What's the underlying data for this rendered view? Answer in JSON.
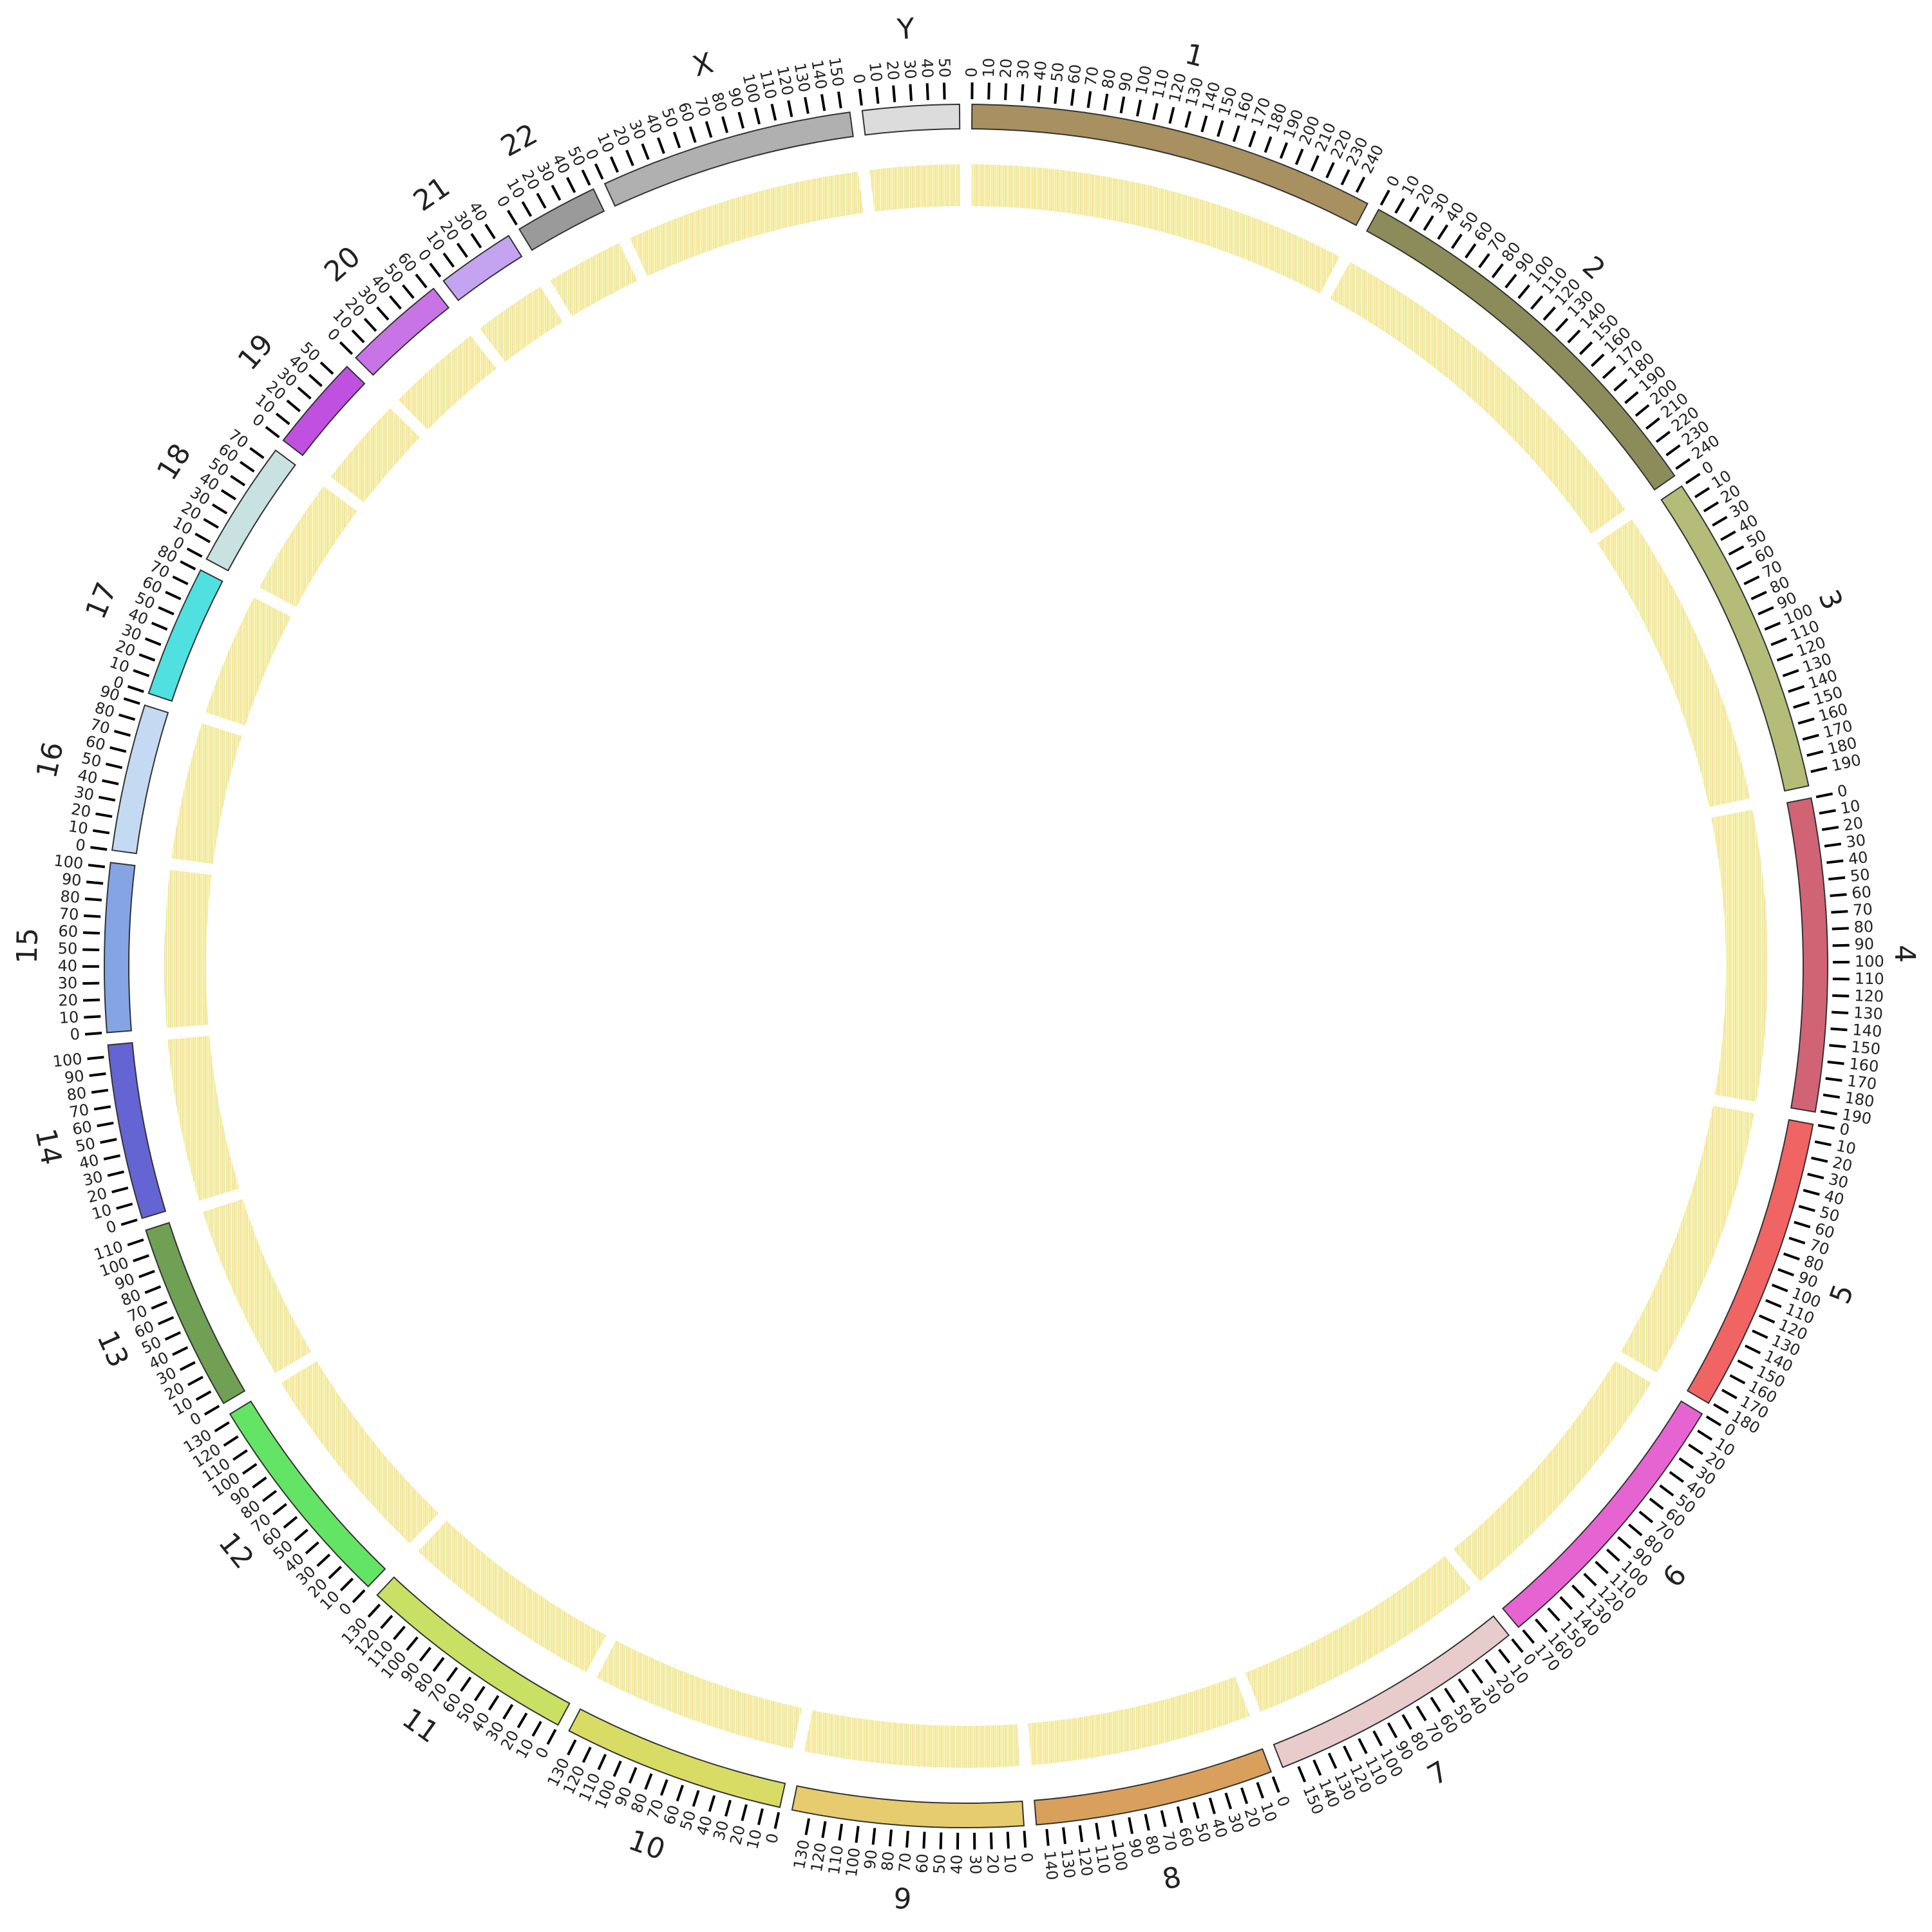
{
  "chart_data": {
    "type": "circos",
    "chromosomes": [
      {
        "name": "1",
        "length": 249,
        "color": "#a89060",
        "ticks": [
          0,
          10,
          20,
          30,
          40,
          50,
          60,
          70,
          80,
          90,
          100,
          110,
          120,
          130,
          140,
          150,
          160,
          170,
          180,
          190,
          200,
          210,
          220,
          230,
          240
        ]
      },
      {
        "name": "2",
        "length": 243,
        "color": "#8c8c5a",
        "ticks": [
          0,
          10,
          20,
          30,
          40,
          50,
          60,
          70,
          80,
          90,
          100,
          110,
          120,
          130,
          140,
          150,
          160,
          170,
          180,
          190,
          200,
          210,
          220,
          230,
          240
        ]
      },
      {
        "name": "3",
        "length": 198,
        "color": "#b4bc78",
        "ticks": [
          0,
          10,
          20,
          30,
          40,
          50,
          60,
          70,
          80,
          90,
          100,
          110,
          120,
          130,
          140,
          150,
          160,
          170,
          180,
          190
        ]
      },
      {
        "name": "4",
        "length": 191,
        "color": "#d06474",
        "ticks": [
          0,
          10,
          20,
          30,
          40,
          50,
          60,
          70,
          80,
          90,
          100,
          110,
          120,
          130,
          140,
          150,
          160,
          170,
          180,
          190
        ]
      },
      {
        "name": "5",
        "length": 181,
        "color": "#f06464",
        "ticks": [
          0,
          10,
          20,
          30,
          40,
          50,
          60,
          70,
          80,
          90,
          100,
          110,
          120,
          130,
          140,
          150,
          160,
          170,
          180
        ]
      },
      {
        "name": "6",
        "length": 171,
        "color": "#e664d2",
        "ticks": [
          0,
          10,
          20,
          30,
          40,
          50,
          60,
          70,
          80,
          90,
          100,
          110,
          120,
          130,
          140,
          150,
          160,
          170
        ]
      },
      {
        "name": "7",
        "length": 159,
        "color": "#e8cccc",
        "ticks": [
          0,
          10,
          20,
          30,
          40,
          50,
          60,
          70,
          80,
          90,
          100,
          110,
          120,
          130,
          140,
          150
        ]
      },
      {
        "name": "8",
        "length": 146,
        "color": "#d8a05c",
        "ticks": [
          0,
          10,
          20,
          30,
          40,
          50,
          60,
          70,
          80,
          90,
          100,
          110,
          120,
          130,
          140
        ]
      },
      {
        "name": "9",
        "length": 141,
        "color": "#e6cc6e",
        "ticks": [
          0,
          10,
          20,
          30,
          40,
          50,
          60,
          70,
          80,
          90,
          100,
          110,
          120,
          130
        ]
      },
      {
        "name": "10",
        "length": 136,
        "color": "#d8dc64",
        "ticks": [
          0,
          10,
          20,
          30,
          40,
          50,
          60,
          70,
          80,
          90,
          100,
          110,
          120,
          130
        ]
      },
      {
        "name": "11",
        "length": 135,
        "color": "#c8e064",
        "ticks": [
          0,
          10,
          20,
          30,
          40,
          50,
          60,
          70,
          80,
          90,
          100,
          110,
          120,
          130
        ]
      },
      {
        "name": "12",
        "length": 134,
        "color": "#64e464",
        "ticks": [
          0,
          10,
          20,
          30,
          40,
          50,
          60,
          70,
          80,
          90,
          100,
          110,
          120,
          130
        ]
      },
      {
        "name": "13",
        "length": 115,
        "color": "#70a054",
        "ticks": [
          0,
          10,
          20,
          30,
          40,
          50,
          60,
          70,
          80,
          90,
          100,
          110
        ]
      },
      {
        "name": "14",
        "length": 107,
        "color": "#6464d2",
        "ticks": [
          0,
          10,
          20,
          30,
          40,
          50,
          60,
          70,
          80,
          90,
          100
        ]
      },
      {
        "name": "15",
        "length": 103,
        "color": "#84a4e4",
        "ticks": [
          0,
          10,
          20,
          30,
          40,
          50,
          60,
          70,
          80,
          90,
          100
        ]
      },
      {
        "name": "16",
        "length": 90,
        "color": "#c4daf2",
        "ticks": [
          0,
          10,
          20,
          30,
          40,
          50,
          60,
          70,
          80,
          90
        ]
      },
      {
        "name": "17",
        "length": 81,
        "color": "#50e0e0",
        "ticks": [
          0,
          10,
          20,
          30,
          40,
          50,
          60,
          70,
          80
        ]
      },
      {
        "name": "18",
        "length": 78,
        "color": "#c8e2e2",
        "ticks": [
          0,
          10,
          20,
          30,
          40,
          50,
          60,
          70
        ]
      },
      {
        "name": "19",
        "length": 59,
        "color": "#c050e0",
        "ticks": [
          0,
          10,
          20,
          30,
          40,
          50
        ]
      },
      {
        "name": "20",
        "length": 63,
        "color": "#c874e6",
        "ticks": [
          0,
          10,
          20,
          30,
          40,
          50,
          60
        ]
      },
      {
        "name": "21",
        "length": 48,
        "color": "#c4a4f0",
        "ticks": [
          0,
          10,
          20,
          30,
          40
        ]
      },
      {
        "name": "22",
        "length": 51,
        "color": "#9a9a9a",
        "ticks": [
          0,
          10,
          20,
          30,
          40,
          50
        ]
      },
      {
        "name": "X",
        "length": 155,
        "color": "#b0b0b0",
        "ticks": [
          0,
          10,
          20,
          30,
          40,
          50,
          60,
          70,
          80,
          90,
          100,
          110,
          120,
          130,
          140,
          150
        ]
      },
      {
        "name": "Y",
        "length": 59,
        "color": "#dcdcdc",
        "ticks": [
          0,
          10,
          20,
          30,
          40,
          50
        ]
      }
    ]
  }
}
